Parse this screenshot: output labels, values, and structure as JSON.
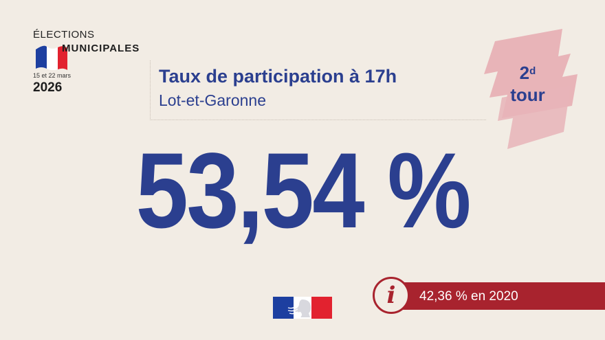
{
  "logo": {
    "line1": "ÉLECTIONS",
    "line2": "MUNICIPALES",
    "dates": "15 et 22 mars",
    "year": "2026",
    "flag_colors": [
      "#1d3fa0",
      "#ffffff",
      "#e2222f"
    ]
  },
  "header": {
    "title": "Taux de participation à 17h",
    "subtitle": "Lot-et-Garonne"
  },
  "tour_badge": {
    "number": "2",
    "superscript": "d",
    "word": "tour",
    "color": "#e8b4b8"
  },
  "main": {
    "value": "53,54 %"
  },
  "info": {
    "icon": "info-icon",
    "text": "42,36 % en 2020",
    "color": "#a8232e"
  },
  "footer": {
    "emblem": "marianne-logo-icon"
  }
}
